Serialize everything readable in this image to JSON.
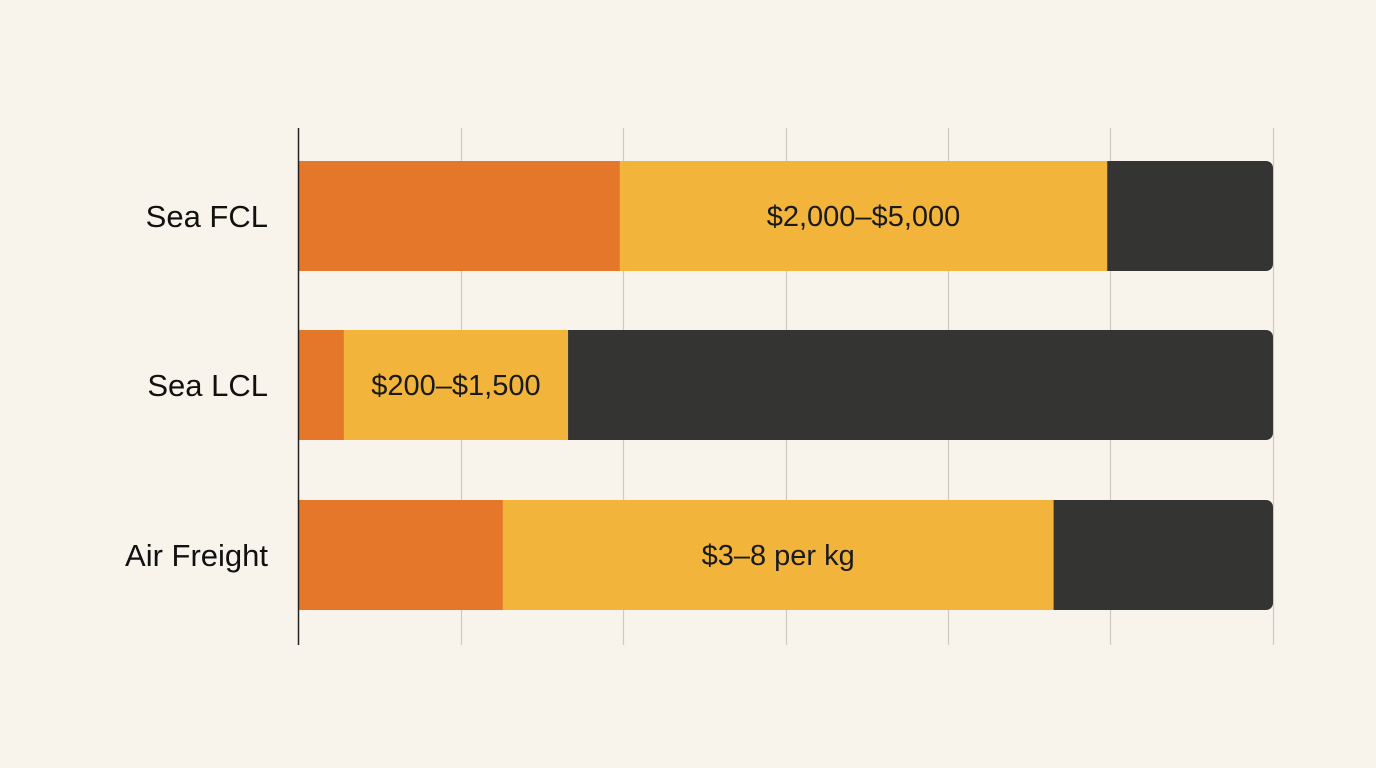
{
  "chart_data": {
    "type": "bar",
    "orientation": "horizontal",
    "stacked": true,
    "categories": [
      "Sea FCL",
      "Sea LCL",
      "Air Freight"
    ],
    "series": [
      {
        "color": "#e5772a",
        "values": [
          33,
          4.7,
          21
        ]
      },
      {
        "color": "#f2b43a",
        "values": [
          50,
          23,
          56.5
        ]
      },
      {
        "color": "#343432",
        "values": [
          17,
          72.3,
          22.5
        ]
      }
    ],
    "data_labels": [
      "$2,000–$5,000",
      "$200–$1,500",
      "$3–8 per kg"
    ],
    "data_label_series": 1,
    "xlim": [
      0,
      100
    ],
    "x_gridlines": [
      0,
      16.7,
      33.3,
      50,
      66.7,
      83.3,
      100
    ],
    "grid": true,
    "legend": "none",
    "title": "",
    "xlabel": "",
    "ylabel": ""
  }
}
